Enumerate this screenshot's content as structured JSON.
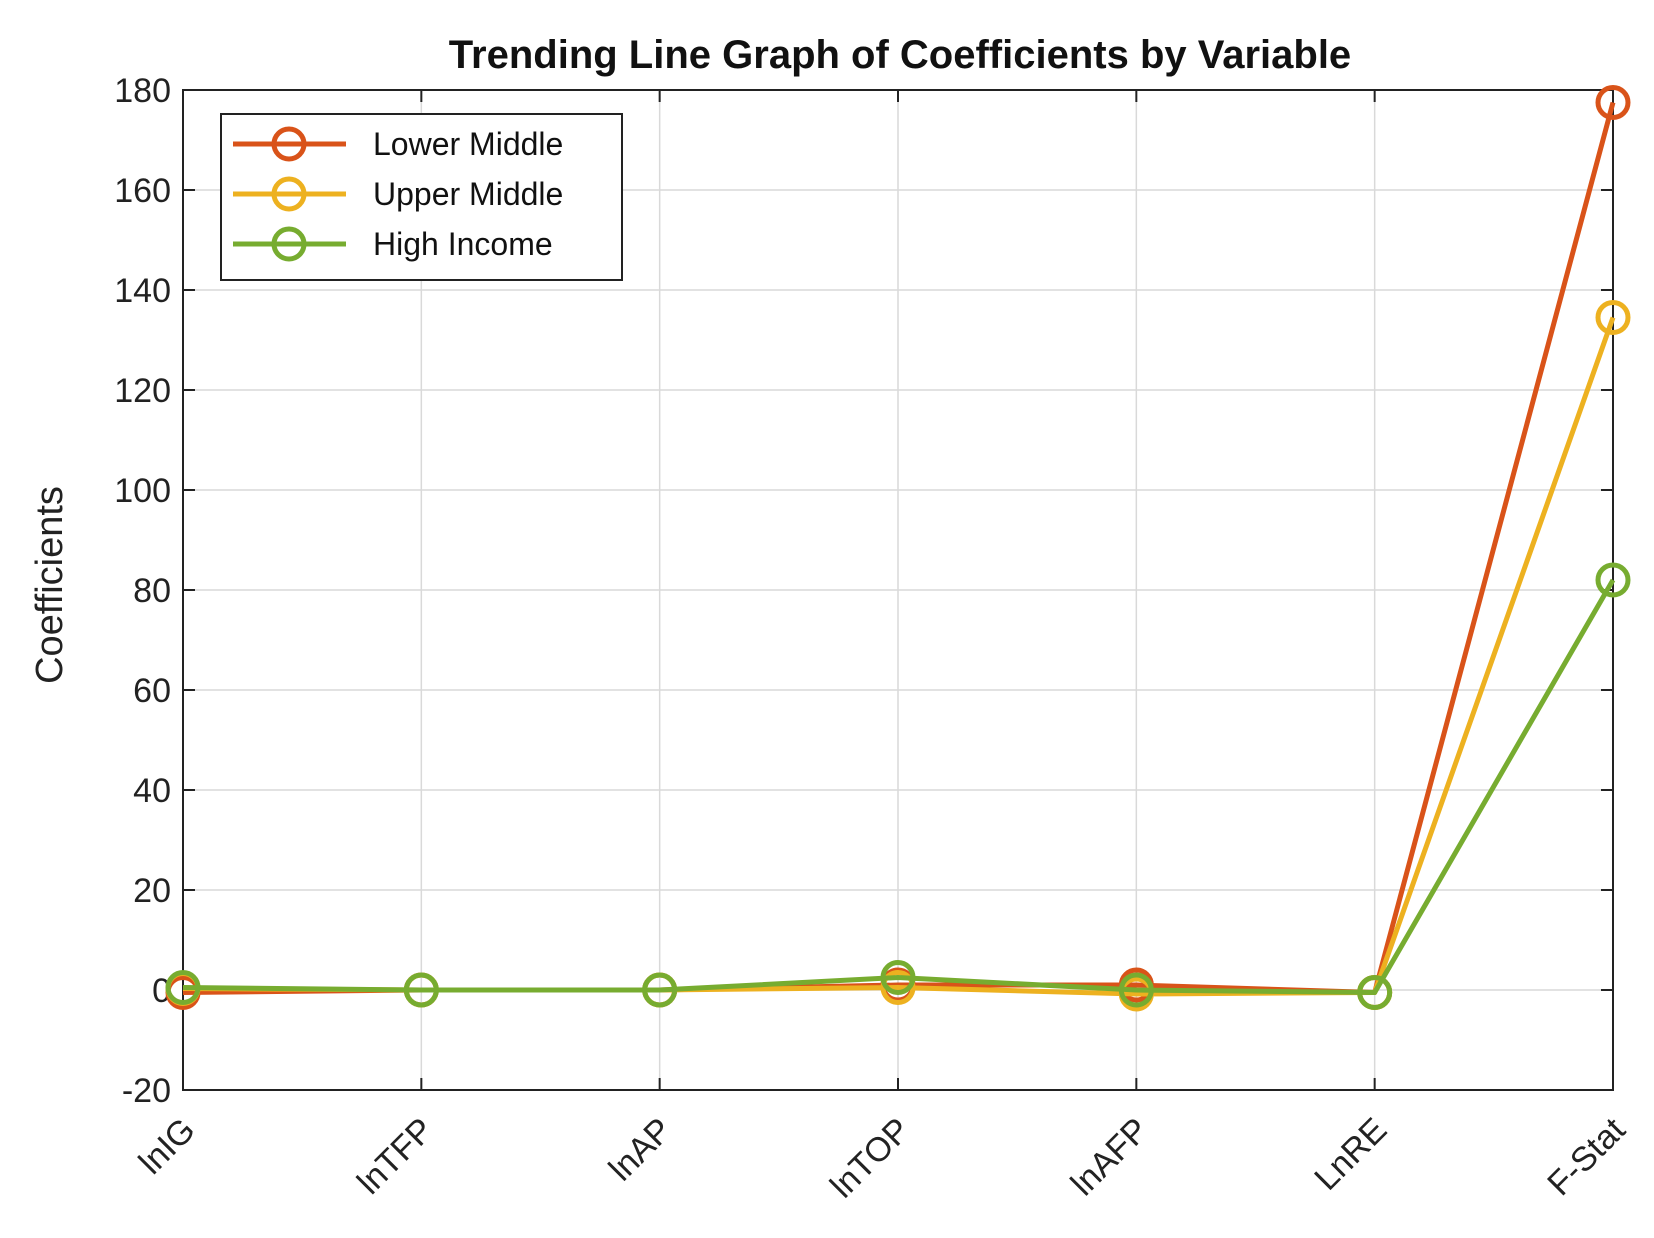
{
  "chart_data": {
    "type": "line",
    "title": "Trending Line Graph of Coefficients by Variable",
    "xlabel": "",
    "ylabel": "Coefficients",
    "categories": [
      "lnIG",
      "lnTFP",
      "lnAP",
      "lnTOP",
      "lnAFP",
      "LnRE",
      "F-Stat"
    ],
    "ylim": [
      -20,
      180
    ],
    "yticks": [
      -20,
      0,
      20,
      40,
      60,
      80,
      100,
      120,
      140,
      160,
      180
    ],
    "grid": true,
    "legend_position": "top-left",
    "series": [
      {
        "name": "Lower Middle",
        "color": "#d95319",
        "values": [
          -0.5,
          0.0,
          0.0,
          1.0,
          1.0,
          -0.5,
          177.5
        ]
      },
      {
        "name": "Upper Middle",
        "color": "#edb120",
        "values": [
          0.3,
          0.0,
          0.0,
          0.5,
          -0.8,
          -0.5,
          134.5
        ]
      },
      {
        "name": "High Income",
        "color": "#77ac30",
        "values": [
          0.5,
          0.0,
          0.0,
          2.5,
          0.0,
          -0.5,
          82.0
        ]
      }
    ]
  }
}
